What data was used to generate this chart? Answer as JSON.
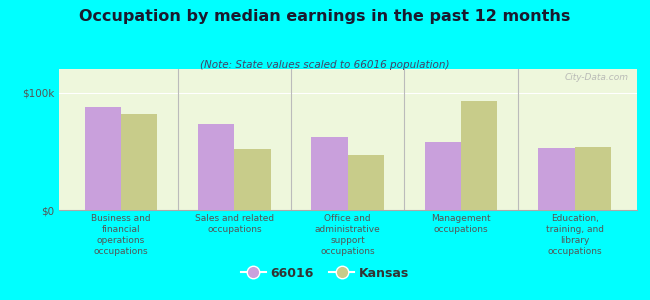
{
  "title": "Occupation by median earnings in the past 12 months",
  "subtitle": "(Note: State values scaled to 66016 population)",
  "categories": [
    "Business and\nfinancial\noperations\noccupations",
    "Sales and related\noccupations",
    "Office and\nadministrative\nsupport\noccupations",
    "Management\noccupations",
    "Education,\ntraining, and\nlibrary\noccupations"
  ],
  "values_66016": [
    88000,
    73000,
    62000,
    58000,
    53000
  ],
  "values_kansas": [
    82000,
    52000,
    47000,
    93000,
    54000
  ],
  "color_66016": "#c9a0dc",
  "color_kansas": "#c8cc8a",
  "ylim": [
    0,
    120000
  ],
  "yticks": [
    0,
    100000
  ],
  "ytick_labels": [
    "$0",
    "$100k"
  ],
  "bar_width": 0.32,
  "background_color": "#eef7dc",
  "outer_background": "#00ffff",
  "watermark": "City-Data.com",
  "legend_label_1": "66016",
  "legend_label_2": "Kansas",
  "title_color": "#1a1a2e",
  "subtitle_color": "#444466",
  "tick_color": "#555555"
}
